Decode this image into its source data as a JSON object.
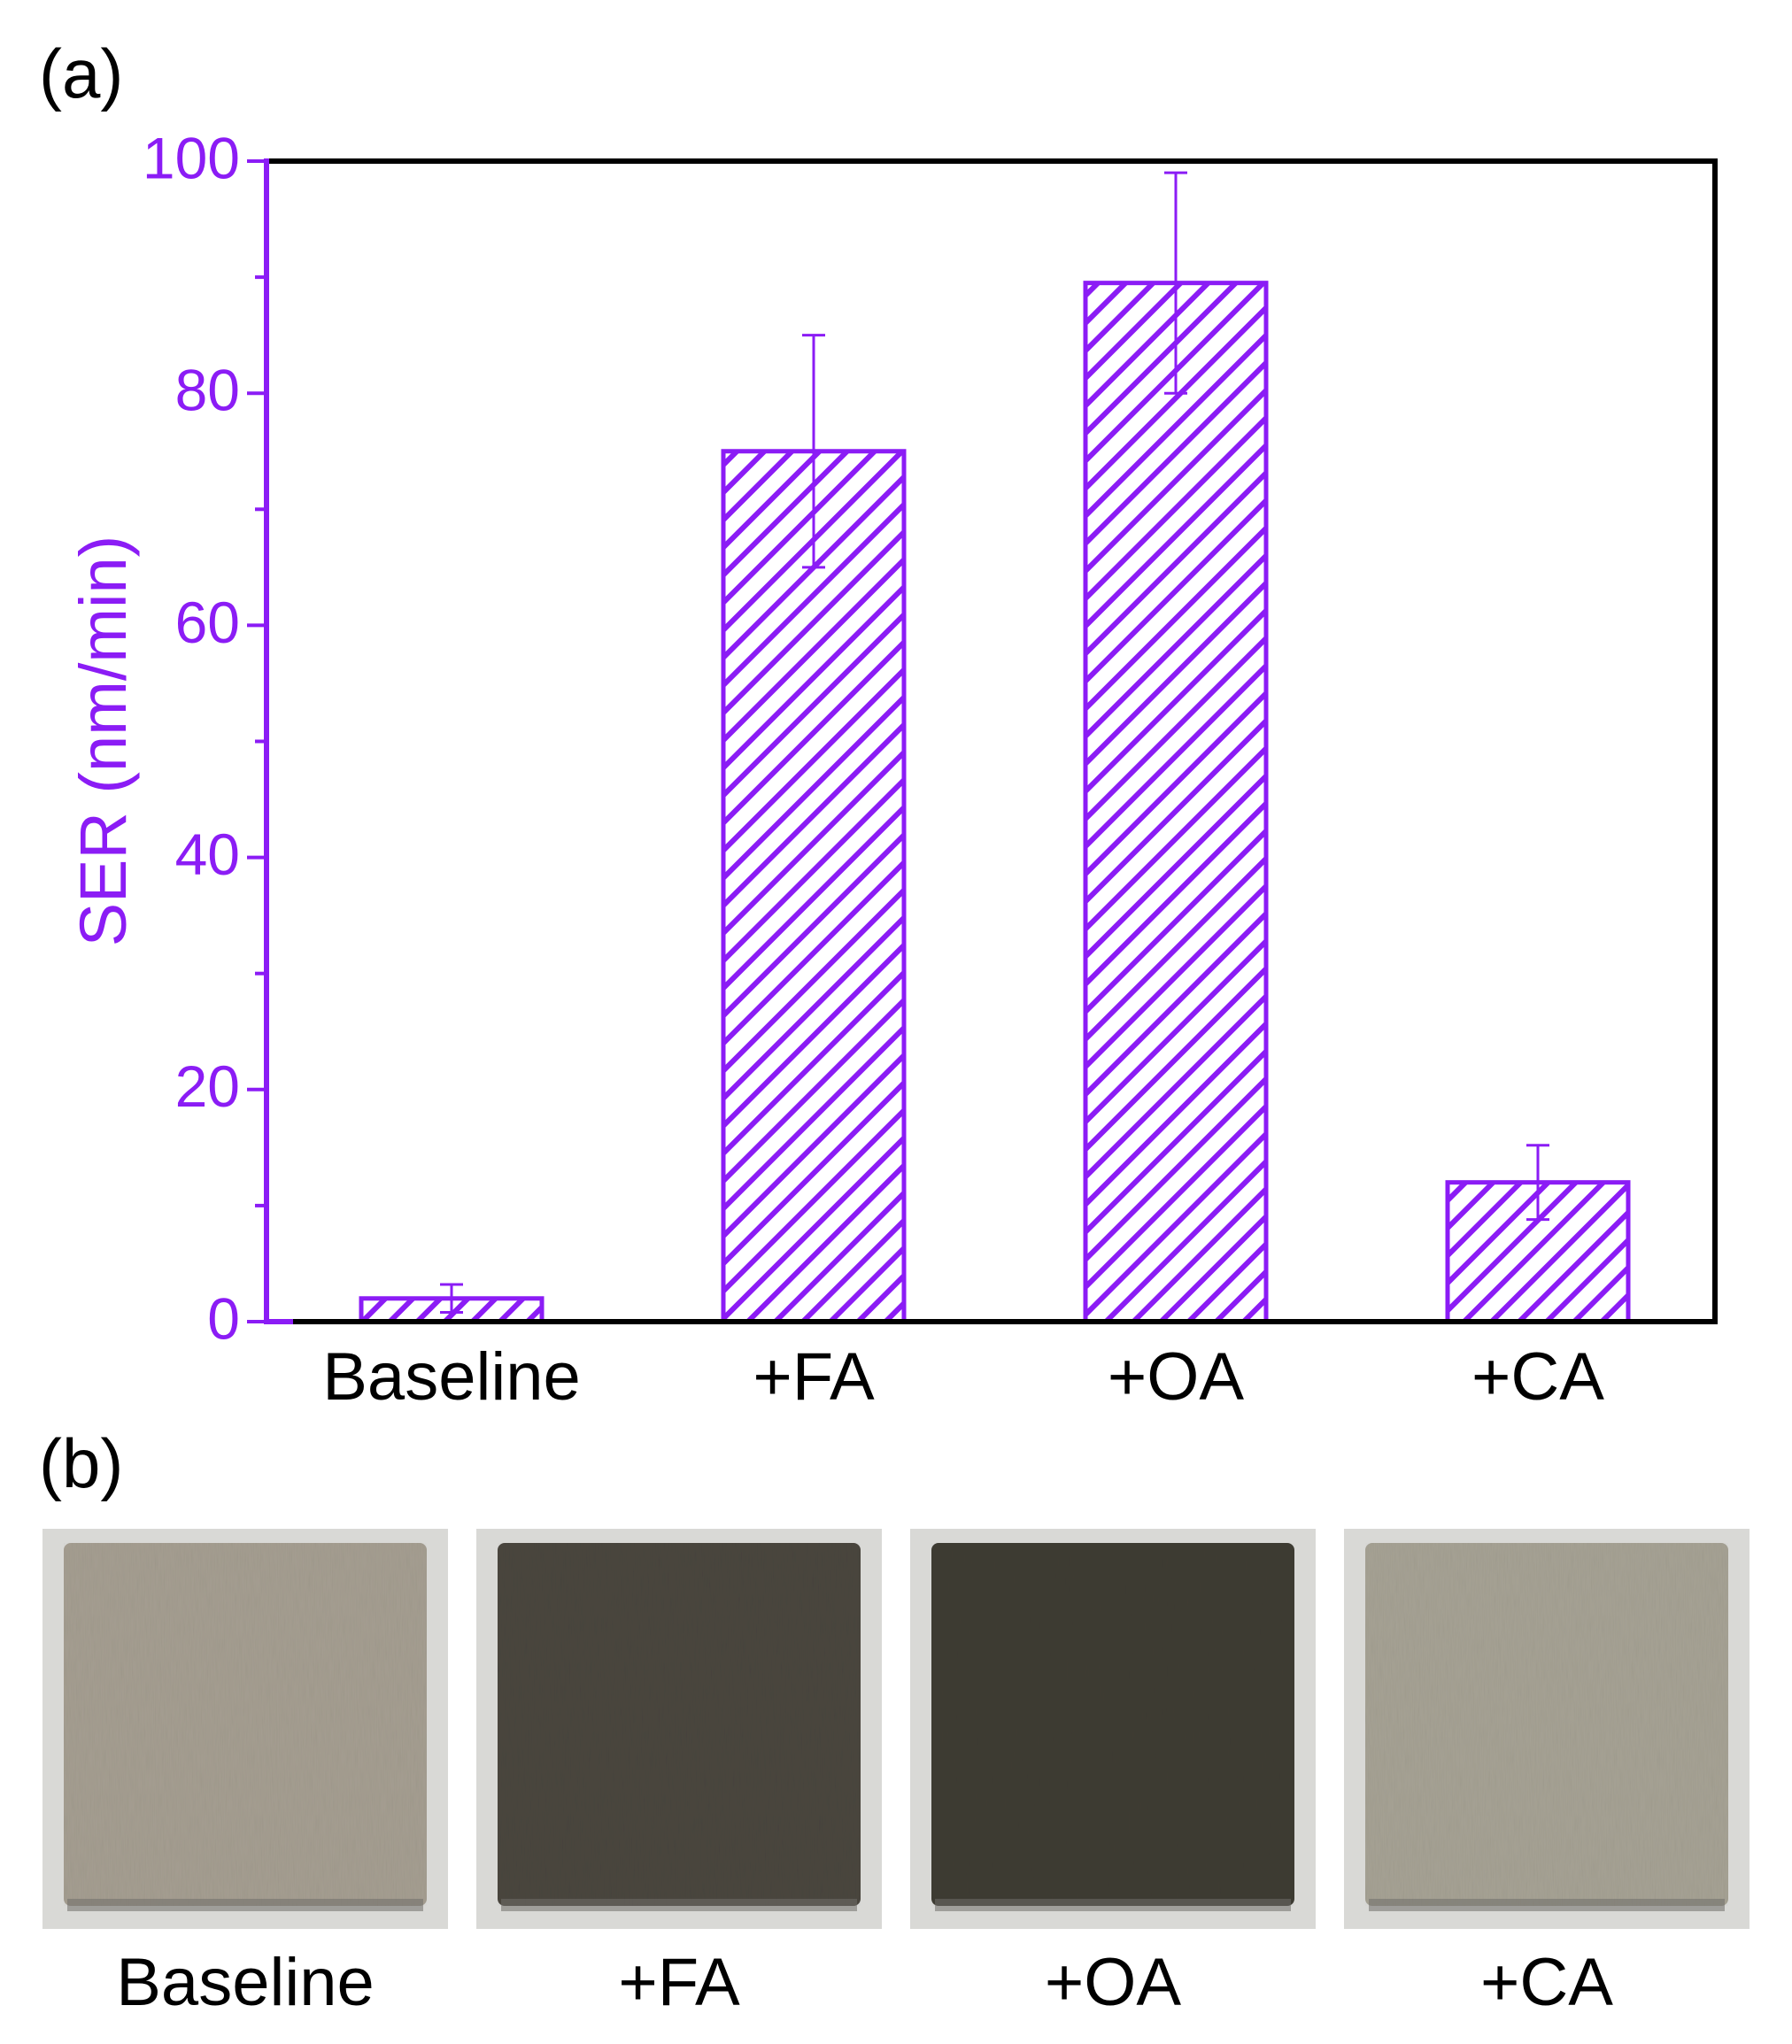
{
  "panel_a_label": "(a)",
  "panel_b_label": "(b)",
  "colors": {
    "accent": "#8b1cf5",
    "frame": "#000000",
    "background": "#ffffff"
  },
  "chart_data": {
    "type": "bar",
    "title": "",
    "xlabel": "",
    "ylabel": "SER (nm/min)",
    "ylim": [
      0,
      100
    ],
    "yticks": [
      "0",
      "20",
      "40",
      "60",
      "80",
      "100"
    ],
    "categories": [
      "Baseline",
      "+FA",
      "+OA",
      "+CA"
    ],
    "values": [
      2,
      75,
      89.5,
      12
    ],
    "error": [
      1.2,
      10,
      9.5,
      3.2
    ],
    "bar_fill": "diagonal hatch",
    "grid": false,
    "legend": "none"
  },
  "photos": [
    {
      "label": "Baseline",
      "tone": "#a59e91"
    },
    {
      "label": "+FA",
      "tone": "#4a463f"
    },
    {
      "label": "+OA",
      "tone": "#3f3c33"
    },
    {
      "label": "+CA",
      "tone": "#a6a294"
    }
  ]
}
